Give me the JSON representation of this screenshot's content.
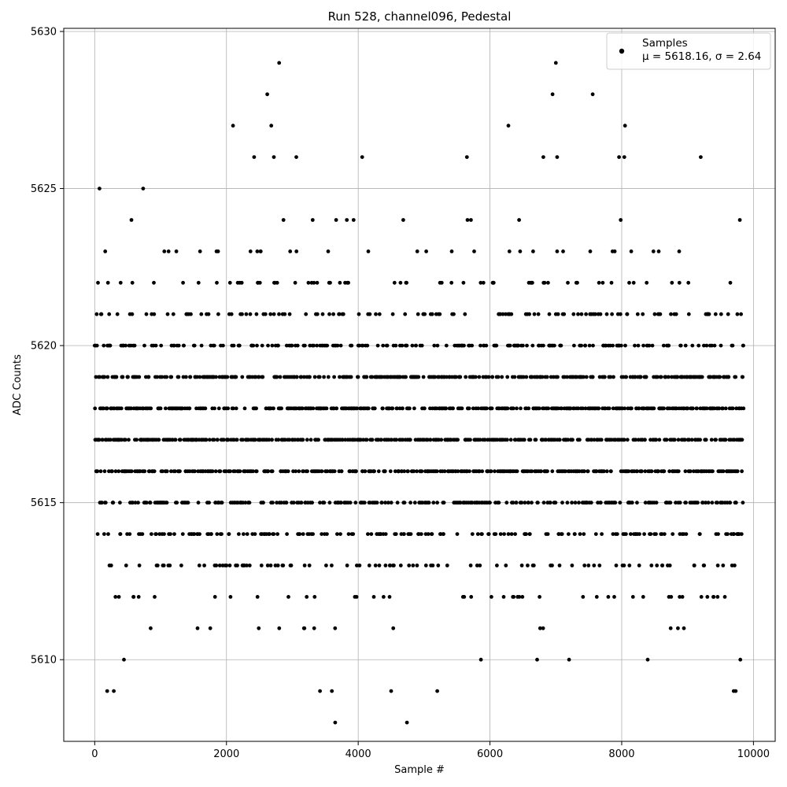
{
  "chart_data": {
    "type": "scatter",
    "title": "Run 528, channel096, Pedestal",
    "xlabel": "Sample #",
    "ylabel": "ADC Counts",
    "xlim": [
      -470,
      10330
    ],
    "ylim": [
      5607.4,
      5630.1
    ],
    "xticks": [
      0,
      2000,
      4000,
      6000,
      8000,
      10000
    ],
    "yticks": [
      5610,
      5615,
      5620,
      5625,
      5630
    ],
    "grid": true,
    "legend_position": "top-right",
    "marker_color": "#000000",
    "series": [
      {
        "name": "Samples",
        "stats_label": "μ = 5618.16, σ = 2.64",
        "x_min": 0,
        "x_max": 9850,
        "outliers": [
          {
            "x": 2800,
            "y": 5629
          },
          {
            "x": 7000,
            "y": 5629
          },
          {
            "x": 2620,
            "y": 5628
          },
          {
            "x": 6950,
            "y": 5628
          },
          {
            "x": 7560,
            "y": 5628
          },
          {
            "x": 2100,
            "y": 5627
          },
          {
            "x": 2680,
            "y": 5627
          },
          {
            "x": 6280,
            "y": 5627
          },
          {
            "x": 8050,
            "y": 5627
          },
          {
            "x": 2420,
            "y": 5626
          },
          {
            "x": 2720,
            "y": 5626
          },
          {
            "x": 3060,
            "y": 5626
          },
          {
            "x": 4060,
            "y": 5626
          },
          {
            "x": 5650,
            "y": 5626
          },
          {
            "x": 6810,
            "y": 5626
          },
          {
            "x": 7020,
            "y": 5626
          },
          {
            "x": 7960,
            "y": 5626
          },
          {
            "x": 8040,
            "y": 5626
          },
          {
            "x": 9200,
            "y": 5626
          },
          {
            "x": 3650,
            "y": 5608
          },
          {
            "x": 4740,
            "y": 5608
          },
          {
            "x": 190,
            "y": 5609
          },
          {
            "x": 290,
            "y": 5609
          },
          {
            "x": 3420,
            "y": 5609
          },
          {
            "x": 3600,
            "y": 5609
          },
          {
            "x": 4500,
            "y": 5609
          },
          {
            "x": 5200,
            "y": 5609
          },
          {
            "x": 9700,
            "y": 5609
          },
          {
            "x": 9730,
            "y": 5609
          }
        ]
      }
    ]
  }
}
